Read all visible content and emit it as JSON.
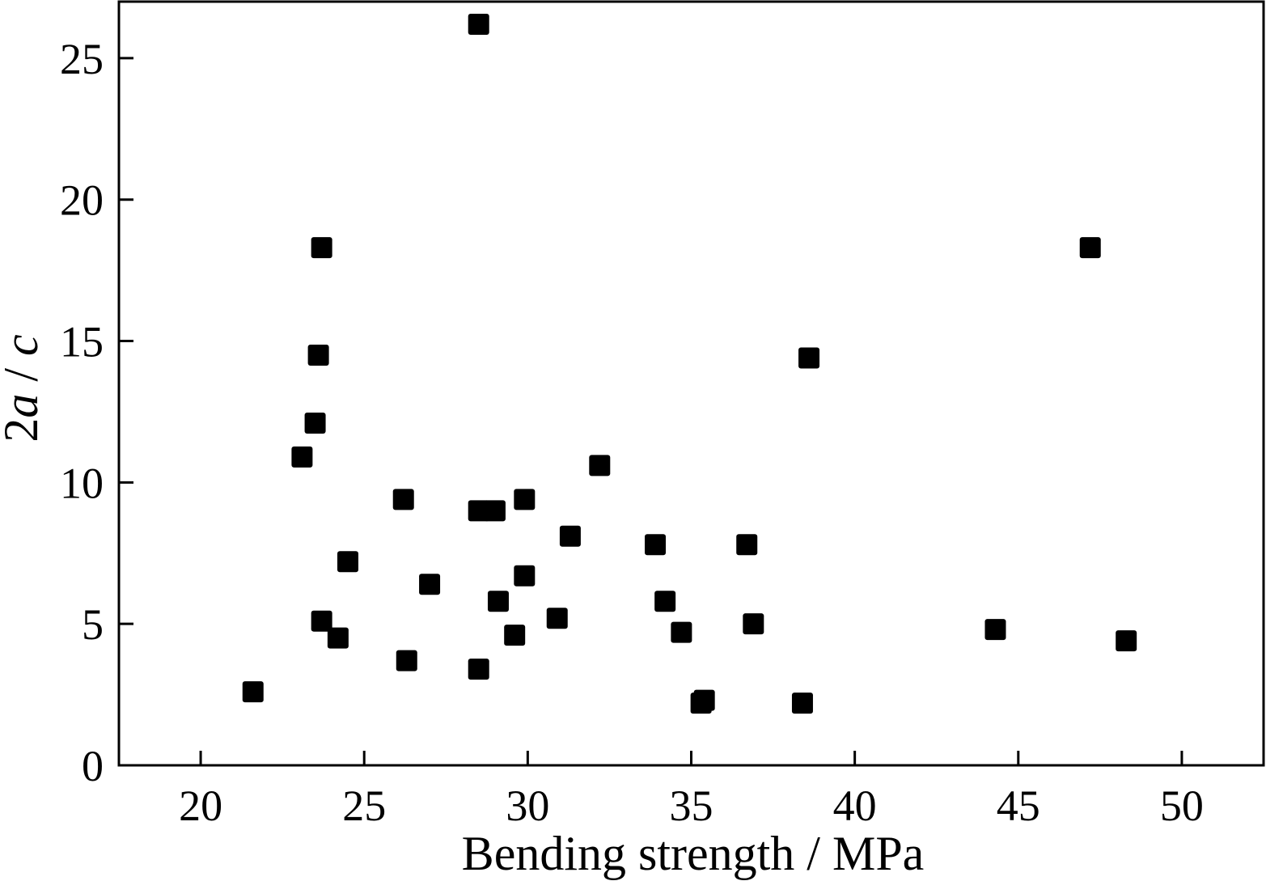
{
  "chart_data": {
    "type": "scatter",
    "title": "",
    "xlabel": "Bending strength / MPa",
    "ylabel_parts": [
      {
        "text": "2",
        "italic": false
      },
      {
        "text": "a",
        "italic": true
      },
      {
        "text": " / ",
        "italic": false
      },
      {
        "text": "c",
        "italic": true
      }
    ],
    "xlim": [
      17.5,
      52.5
    ],
    "ylim": [
      0,
      27
    ],
    "xticks": [
      20,
      25,
      30,
      35,
      40,
      45,
      50
    ],
    "yticks": [
      0,
      5,
      10,
      15,
      20,
      25
    ],
    "grid": false,
    "legend": "none",
    "marker": "square",
    "marker_color": "#000000",
    "points": [
      {
        "x": 21.6,
        "y": 2.6
      },
      {
        "x": 23.1,
        "y": 10.9
      },
      {
        "x": 23.5,
        "y": 12.1
      },
      {
        "x": 23.6,
        "y": 14.5
      },
      {
        "x": 23.7,
        "y": 18.3
      },
      {
        "x": 23.7,
        "y": 5.1
      },
      {
        "x": 24.2,
        "y": 4.5
      },
      {
        "x": 24.5,
        "y": 7.2
      },
      {
        "x": 26.2,
        "y": 9.4
      },
      {
        "x": 26.3,
        "y": 3.7
      },
      {
        "x": 27.0,
        "y": 6.4
      },
      {
        "x": 28.5,
        "y": 26.2
      },
      {
        "x": 28.5,
        "y": 9.0
      },
      {
        "x": 28.5,
        "y": 3.4
      },
      {
        "x": 29.0,
        "y": 9.0
      },
      {
        "x": 29.1,
        "y": 5.8
      },
      {
        "x": 29.6,
        "y": 4.6
      },
      {
        "x": 29.9,
        "y": 9.4
      },
      {
        "x": 29.9,
        "y": 6.7
      },
      {
        "x": 30.9,
        "y": 5.2
      },
      {
        "x": 31.3,
        "y": 8.1
      },
      {
        "x": 32.2,
        "y": 10.6
      },
      {
        "x": 33.9,
        "y": 7.8
      },
      {
        "x": 34.2,
        "y": 5.8
      },
      {
        "x": 34.7,
        "y": 4.7
      },
      {
        "x": 35.3,
        "y": 2.2
      },
      {
        "x": 35.4,
        "y": 2.3
      },
      {
        "x": 36.7,
        "y": 7.8
      },
      {
        "x": 36.9,
        "y": 5.0
      },
      {
        "x": 38.4,
        "y": 2.2
      },
      {
        "x": 38.6,
        "y": 14.4
      },
      {
        "x": 44.3,
        "y": 4.8
      },
      {
        "x": 47.2,
        "y": 18.3
      },
      {
        "x": 48.3,
        "y": 4.4
      }
    ]
  }
}
